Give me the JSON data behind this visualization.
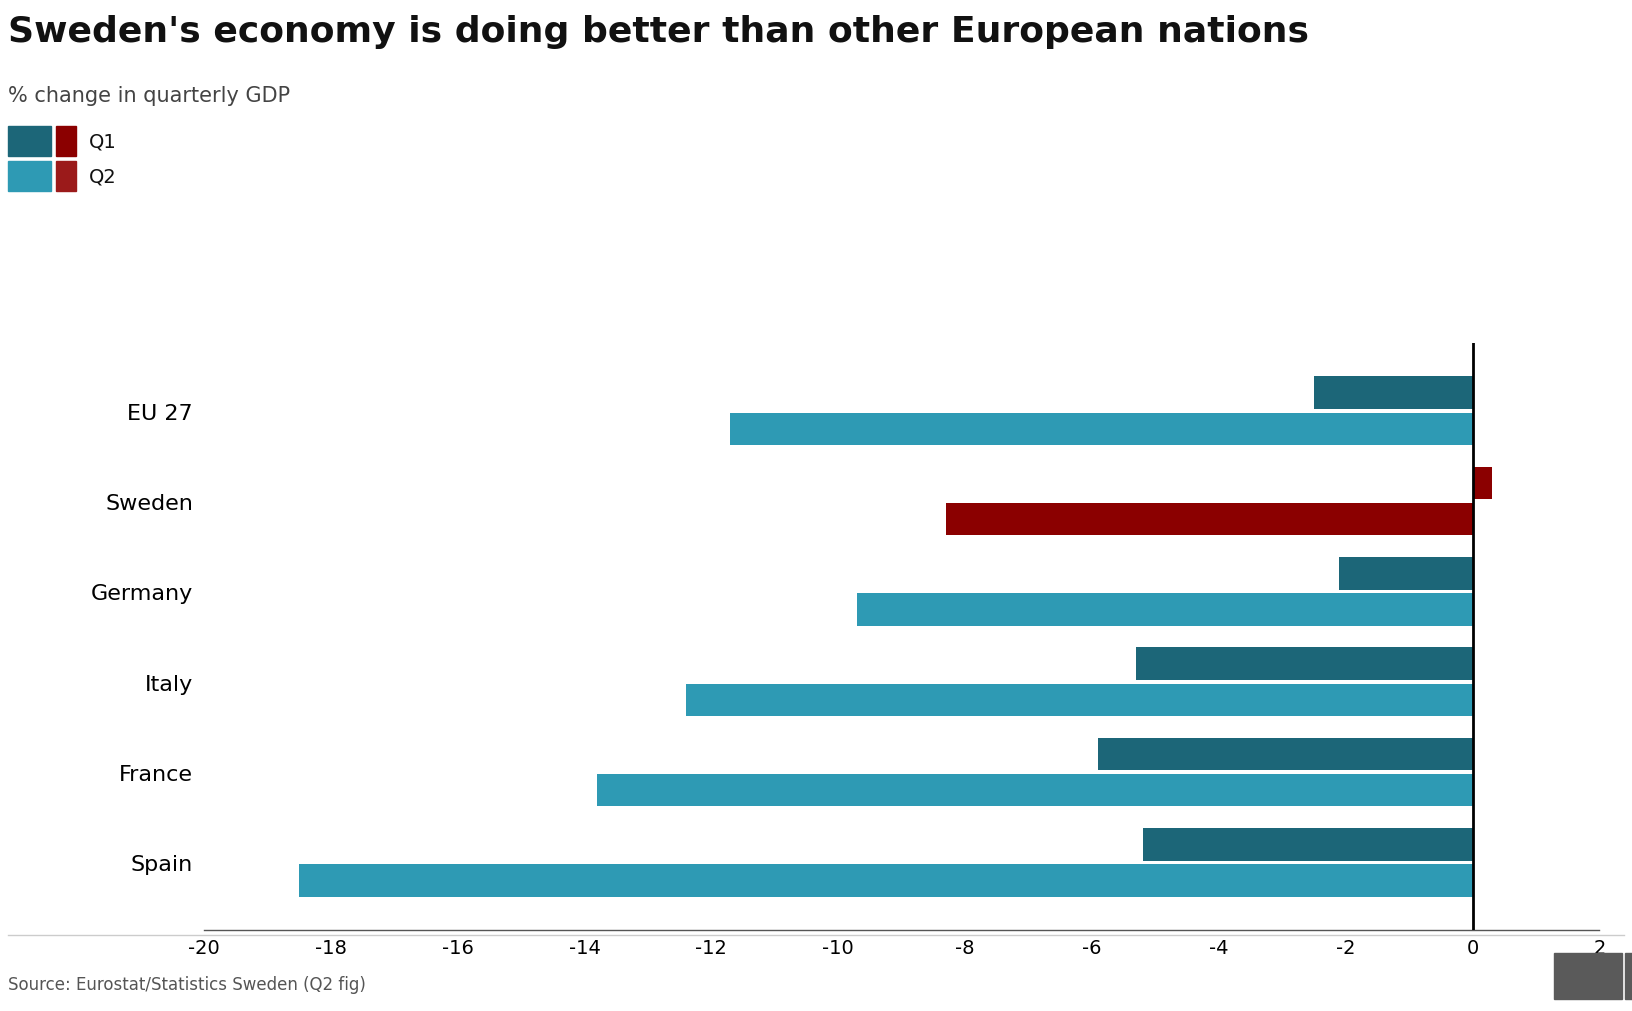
{
  "title": "Sweden's economy is doing better than other European nations",
  "subtitle": "% change in quarterly GDP",
  "source": "Source: Eurostat/Statistics Sweden (Q2 fig)",
  "categories": [
    "EU 27",
    "Sweden",
    "Germany",
    "Italy",
    "France",
    "Spain"
  ],
  "q1_values": [
    -2.5,
    0.3,
    -2.1,
    -5.3,
    -5.9,
    -5.2
  ],
  "q2_values": [
    -11.7,
    -8.3,
    -9.7,
    -12.4,
    -13.8,
    -18.5
  ],
  "q1_color_default": "#1c6678",
  "q1_color_sweden": "#8b0000",
  "q2_color_default": "#2e9ab4",
  "q2_color_sweden": "#8b0000",
  "xlim": [
    -20,
    2
  ],
  "xticks": [
    -20,
    -18,
    -16,
    -14,
    -12,
    -10,
    -8,
    -6,
    -4,
    -2,
    0,
    2
  ],
  "background_color": "#ffffff",
  "title_fontsize": 26,
  "subtitle_fontsize": 15,
  "source_fontsize": 12,
  "tick_fontsize": 14,
  "label_fontsize": 16,
  "bar_height": 0.36,
  "bar_gap": 0.04,
  "legend_dark_teal": "#1c6678",
  "legend_light_teal": "#2e9ab4",
  "legend_dark_red": "#8b0000",
  "legend_red": "#9b1a1a",
  "bbc_bg": "#5a5a5a"
}
